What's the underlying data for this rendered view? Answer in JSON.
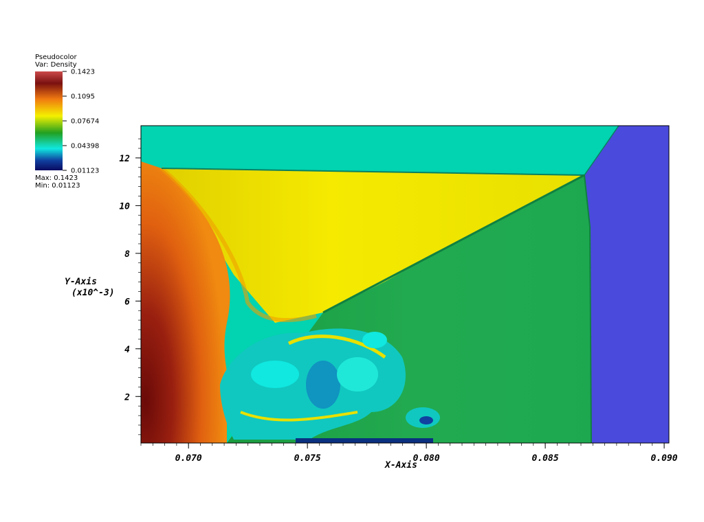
{
  "legend": {
    "plot_type": "Pseudocolor",
    "variable": "Var: Density",
    "max_label": "Max: 0.1423",
    "min_label": "Min: 0.01123",
    "ticks": [
      "0.1423",
      "0.1095",
      "0.07674",
      "0.04398",
      "0.01123"
    ],
    "colors": {
      "top": "#cc4a4a",
      "dark_red": "#7a1010",
      "orange": "#f07a10",
      "yellow": "#f5f000",
      "green": "#22a020",
      "cyan": "#10e8e0",
      "blue": "#1040a0",
      "bottom": "#0a0a60"
    }
  },
  "chart_data": {
    "type": "heatmap",
    "title": "",
    "xlabel": "X-Axis",
    "ylabel": "Y-Axis",
    "ylabel_scale": "(x10^-3)",
    "xlim": [
      0.068,
      0.0902
    ],
    "ylim": [
      0.05,
      13.35
    ],
    "xticks": [
      "0.070",
      "0.075",
      "0.080",
      "0.085",
      "0.090"
    ],
    "yticks": [
      "2",
      "4",
      "6",
      "8",
      "10",
      "12"
    ],
    "variable": "Density",
    "value_range": [
      0.01123,
      0.1423
    ],
    "regions": [
      {
        "name": "upper-left ambient",
        "color": "#02d3b0"
      },
      {
        "name": "right ambient",
        "color": "#4a4adc"
      },
      {
        "name": "shocked yellow",
        "color": "#f0e800"
      },
      {
        "name": "shocked green",
        "color": "#1eaa50"
      },
      {
        "name": "high density red",
        "color": "#8a1a10"
      }
    ]
  }
}
